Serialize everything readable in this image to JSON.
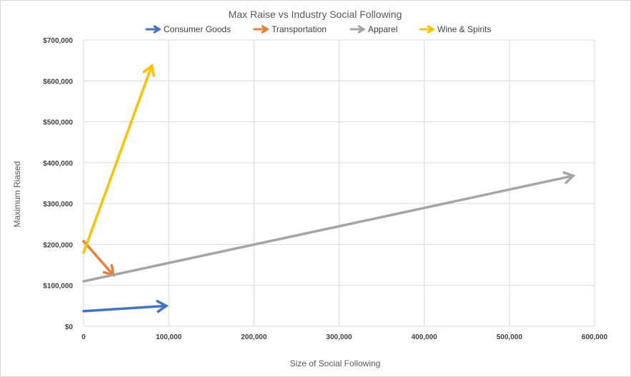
{
  "chart_data": {
    "type": "line",
    "title": "Max Raise vs Industry Social Following",
    "xlabel": "Size of Social Following",
    "ylabel": "Maximum Riased",
    "xlim": [
      0,
      600000
    ],
    "ylim": [
      0,
      700000
    ],
    "x_ticks": [
      0,
      100000,
      200000,
      300000,
      400000,
      500000,
      600000
    ],
    "x_tick_labels": [
      "0",
      "100,000",
      "200,000",
      "300,000",
      "400,000",
      "500,000",
      "600,000"
    ],
    "y_ticks": [
      0,
      100000,
      200000,
      300000,
      400000,
      500000,
      600000,
      700000
    ],
    "y_tick_labels": [
      "$0",
      "$100,000",
      "$200,000",
      "$300,000",
      "$400,000",
      "$500,000",
      "$600,000",
      "$700,000"
    ],
    "grid": true,
    "legend_position": "top",
    "series": [
      {
        "name": "Consumer Goods",
        "color": "#4472C4",
        "x": [
          0,
          97000
        ],
        "y": [
          37000,
          50000
        ]
      },
      {
        "name": "Transportation",
        "color": "#ED7D31",
        "x": [
          0,
          35000
        ],
        "y": [
          208000,
          125000
        ]
      },
      {
        "name": "Apparel",
        "color": "#A5A5A5",
        "x": [
          0,
          575000
        ],
        "y": [
          110000,
          368000
        ]
      },
      {
        "name": "Wine & Spirits",
        "color": "#FFC000",
        "x": [
          0,
          80000
        ],
        "y": [
          180000,
          637000
        ]
      }
    ]
  }
}
